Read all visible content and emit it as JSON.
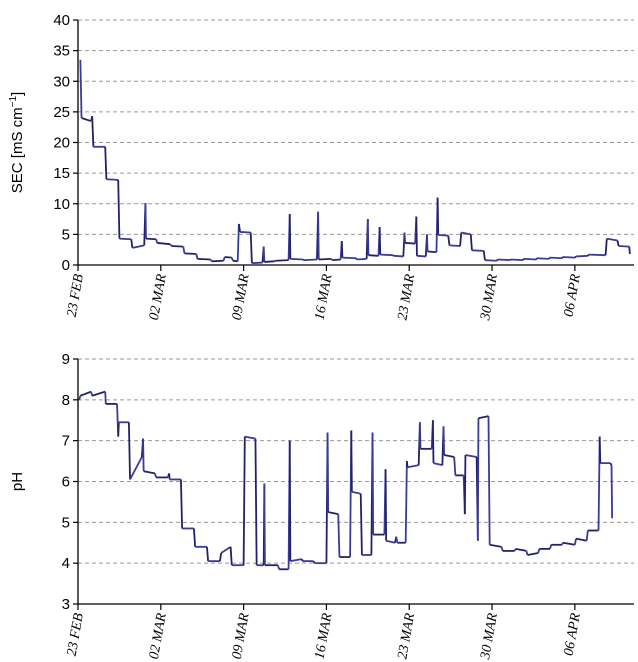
{
  "chart_data": [
    {
      "type": "line",
      "title": "",
      "xlabel": "",
      "ylabel_main": "SEC [mS cm",
      "ylabel_sup": "−1",
      "ylabel_end": "]",
      "ylim": [
        0,
        40
      ],
      "yticks": [
        0,
        5,
        10,
        15,
        20,
        25,
        30,
        35,
        40
      ],
      "xlim": [
        0,
        47
      ],
      "xticks": [
        {
          "x": 0,
          "label": "23 FEB"
        },
        {
          "x": 7,
          "label": "02 MAR"
        },
        {
          "x": 14,
          "label": "09 MAR"
        },
        {
          "x": 21,
          "label": "16 MAR"
        },
        {
          "x": 28,
          "label": "23 MAR"
        },
        {
          "x": 35,
          "label": "30 MAR"
        },
        {
          "x": 42,
          "label": "06 APR"
        }
      ],
      "grid": true,
      "colors": [
        "#222266",
        "#3a3a9a"
      ],
      "points": [
        [
          0.2,
          33.5
        ],
        [
          0.3,
          24
        ],
        [
          1.1,
          23.5
        ],
        [
          1.2,
          24.3
        ],
        [
          1.3,
          19.3
        ],
        [
          2.3,
          19.3
        ],
        [
          2.4,
          14
        ],
        [
          3.4,
          13.9
        ],
        [
          3.5,
          4.3
        ],
        [
          4.5,
          4.2
        ],
        [
          4.6,
          2.8
        ],
        [
          5.6,
          3.2
        ],
        [
          5.7,
          10.1
        ],
        [
          5.75,
          4.3
        ],
        [
          6.6,
          4.2
        ],
        [
          6.7,
          3.6
        ],
        [
          7.8,
          3.4
        ],
        [
          7.9,
          3.1
        ],
        [
          8.9,
          3.0
        ],
        [
          9.0,
          1.9
        ],
        [
          10.0,
          1.8
        ],
        [
          10.1,
          1.0
        ],
        [
          11.2,
          0.9
        ],
        [
          11.3,
          0.6
        ],
        [
          12.3,
          0.7
        ],
        [
          12.4,
          1.3
        ],
        [
          13.0,
          1.2
        ],
        [
          13.1,
          0.7
        ],
        [
          13.5,
          0.6
        ],
        [
          13.6,
          6.7
        ],
        [
          13.7,
          5.4
        ],
        [
          14.6,
          5.3
        ],
        [
          14.7,
          0.3
        ],
        [
          15.6,
          0.4
        ],
        [
          15.7,
          3.0
        ],
        [
          15.75,
          0.5
        ],
        [
          16.6,
          0.6
        ],
        [
          16.7,
          0.7
        ],
        [
          17.8,
          0.8
        ],
        [
          17.9,
          8.3
        ],
        [
          17.95,
          1.0
        ],
        [
          19.0,
          0.9
        ],
        [
          19.1,
          0.8
        ],
        [
          20.2,
          0.9
        ],
        [
          20.3,
          8.7
        ],
        [
          20.35,
          0.9
        ],
        [
          21.4,
          1.0
        ],
        [
          21.5,
          0.8
        ],
        [
          22.2,
          0.9
        ],
        [
          22.3,
          3.9
        ],
        [
          22.35,
          1.2
        ],
        [
          23.5,
          1.1
        ],
        [
          23.6,
          0.9
        ],
        [
          24.4,
          1.0
        ],
        [
          24.5,
          7.5
        ],
        [
          24.55,
          1.6
        ],
        [
          25.4,
          1.5
        ],
        [
          25.5,
          6.2
        ],
        [
          25.55,
          1.7
        ],
        [
          26.6,
          1.6
        ],
        [
          26.7,
          1.5
        ],
        [
          27.5,
          1.4
        ],
        [
          27.6,
          5.3
        ],
        [
          27.65,
          3.6
        ],
        [
          28.5,
          3.5
        ],
        [
          28.6,
          7.9
        ],
        [
          28.65,
          1.5
        ],
        [
          29.4,
          1.4
        ],
        [
          29.5,
          5.0
        ],
        [
          29.55,
          2.2
        ],
        [
          30.3,
          2.1
        ],
        [
          30.4,
          11.0
        ],
        [
          30.45,
          4.9
        ],
        [
          31.3,
          4.8
        ],
        [
          31.4,
          3.2
        ],
        [
          32.3,
          3.1
        ],
        [
          32.4,
          5.3
        ],
        [
          33.2,
          5.0
        ],
        [
          33.3,
          2.4
        ],
        [
          34.3,
          2.3
        ],
        [
          34.4,
          0.8
        ],
        [
          35.4,
          0.7
        ],
        [
          35.5,
          0.9
        ],
        [
          36.5,
          0.8
        ],
        [
          36.6,
          0.9
        ],
        [
          37.6,
          0.8
        ],
        [
          37.7,
          1.0
        ],
        [
          38.7,
          0.9
        ],
        [
          38.8,
          1.1
        ],
        [
          39.8,
          1.0
        ],
        [
          39.9,
          1.2
        ],
        [
          40.9,
          1.1
        ],
        [
          41.0,
          1.3
        ],
        [
          42.0,
          1.2
        ],
        [
          42.1,
          1.4
        ],
        [
          43.1,
          1.5
        ],
        [
          43.2,
          1.7
        ],
        [
          44.6,
          1.6
        ],
        [
          44.7,
          4.3
        ],
        [
          45.6,
          4.0
        ],
        [
          45.7,
          3.1
        ],
        [
          46.6,
          3.0
        ],
        [
          46.65,
          1.8
        ]
      ]
    },
    {
      "type": "line",
      "title": "",
      "xlabel": "",
      "ylabel_main": "pH",
      "ylabel_sup": "",
      "ylabel_end": "",
      "ylim": [
        3,
        9
      ],
      "yticks": [
        3,
        4,
        5,
        6,
        7,
        8,
        9
      ],
      "xlim": [
        0,
        47
      ],
      "xticks": [
        {
          "x": 0,
          "label": "23 FEB"
        },
        {
          "x": 7,
          "label": "02 MAR"
        },
        {
          "x": 14,
          "label": "09 MAR"
        },
        {
          "x": 21,
          "label": "16 MAR"
        },
        {
          "x": 28,
          "label": "23 MAR"
        },
        {
          "x": 35,
          "label": "30 MAR"
        },
        {
          "x": 42,
          "label": "06 APR"
        }
      ],
      "grid": true,
      "colors": [
        "#222266",
        "#3a3a9a"
      ],
      "points": [
        [
          0.1,
          8.0
        ],
        [
          0.2,
          8.1
        ],
        [
          1.1,
          8.2
        ],
        [
          1.2,
          8.1
        ],
        [
          2.3,
          8.2
        ],
        [
          2.35,
          7.9
        ],
        [
          3.3,
          7.9
        ],
        [
          3.4,
          7.1
        ],
        [
          3.45,
          7.45
        ],
        [
          4.3,
          7.45
        ],
        [
          4.4,
          6.05
        ],
        [
          5.4,
          6.6
        ],
        [
          5.5,
          7.05
        ],
        [
          5.55,
          6.25
        ],
        [
          6.5,
          6.2
        ],
        [
          6.6,
          6.1
        ],
        [
          7.6,
          6.1
        ],
        [
          7.7,
          6.2
        ],
        [
          7.75,
          6.05
        ],
        [
          8.7,
          6.05
        ],
        [
          8.8,
          4.85
        ],
        [
          9.8,
          4.85
        ],
        [
          9.9,
          4.4
        ],
        [
          10.9,
          4.4
        ],
        [
          11.0,
          4.05
        ],
        [
          12.0,
          4.05
        ],
        [
          12.1,
          4.25
        ],
        [
          12.9,
          4.4
        ],
        [
          13.0,
          3.95
        ],
        [
          14.0,
          3.95
        ],
        [
          14.1,
          7.1
        ],
        [
          15.0,
          7.05
        ],
        [
          15.1,
          3.95
        ],
        [
          15.7,
          3.95
        ],
        [
          15.75,
          5.95
        ],
        [
          15.8,
          3.95
        ],
        [
          16.9,
          3.95
        ],
        [
          17.0,
          3.85
        ],
        [
          17.8,
          3.85
        ],
        [
          17.9,
          7.0
        ],
        [
          17.95,
          4.05
        ],
        [
          18.9,
          4.1
        ],
        [
          19.0,
          4.05
        ],
        [
          19.9,
          4.05
        ],
        [
          20.0,
          4.0
        ],
        [
          21.0,
          4.0
        ],
        [
          21.1,
          7.2
        ],
        [
          21.15,
          5.25
        ],
        [
          22.0,
          5.2
        ],
        [
          22.1,
          4.15
        ],
        [
          23.0,
          4.15
        ],
        [
          23.1,
          7.25
        ],
        [
          23.15,
          5.75
        ],
        [
          23.9,
          5.7
        ],
        [
          24.0,
          4.2
        ],
        [
          24.8,
          4.2
        ],
        [
          24.9,
          7.2
        ],
        [
          24.95,
          4.7
        ],
        [
          25.9,
          4.7
        ],
        [
          26.0,
          6.3
        ],
        [
          26.05,
          4.55
        ],
        [
          26.8,
          4.5
        ],
        [
          26.9,
          4.65
        ],
        [
          27.0,
          4.5
        ],
        [
          27.7,
          4.5
        ],
        [
          27.8,
          6.5
        ],
        [
          27.85,
          6.35
        ],
        [
          28.8,
          6.4
        ],
        [
          28.9,
          7.45
        ],
        [
          28.95,
          6.8
        ],
        [
          29.9,
          6.8
        ],
        [
          30.0,
          7.5
        ],
        [
          30.05,
          6.45
        ],
        [
          30.8,
          6.4
        ],
        [
          30.9,
          7.35
        ],
        [
          30.95,
          6.65
        ],
        [
          31.8,
          6.6
        ],
        [
          31.9,
          6.15
        ],
        [
          32.6,
          6.15
        ],
        [
          32.7,
          5.2
        ],
        [
          32.75,
          6.65
        ],
        [
          33.7,
          6.6
        ],
        [
          33.8,
          4.55
        ],
        [
          33.85,
          7.55
        ],
        [
          34.7,
          7.6
        ],
        [
          34.8,
          4.45
        ],
        [
          35.8,
          4.4
        ],
        [
          35.9,
          4.3
        ],
        [
          36.9,
          4.3
        ],
        [
          37.0,
          4.35
        ],
        [
          37.9,
          4.3
        ],
        [
          38.0,
          4.2
        ],
        [
          38.9,
          4.25
        ],
        [
          39.0,
          4.35
        ],
        [
          39.9,
          4.35
        ],
        [
          40.0,
          4.45
        ],
        [
          40.9,
          4.45
        ],
        [
          41.0,
          4.5
        ],
        [
          42.0,
          4.45
        ],
        [
          42.1,
          4.6
        ],
        [
          43.0,
          4.55
        ],
        [
          43.1,
          4.8
        ],
        [
          44.0,
          4.8
        ],
        [
          44.1,
          7.1
        ],
        [
          44.15,
          6.45
        ],
        [
          45.0,
          6.45
        ],
        [
          45.1,
          6.4
        ],
        [
          45.15,
          5.1
        ]
      ]
    }
  ]
}
